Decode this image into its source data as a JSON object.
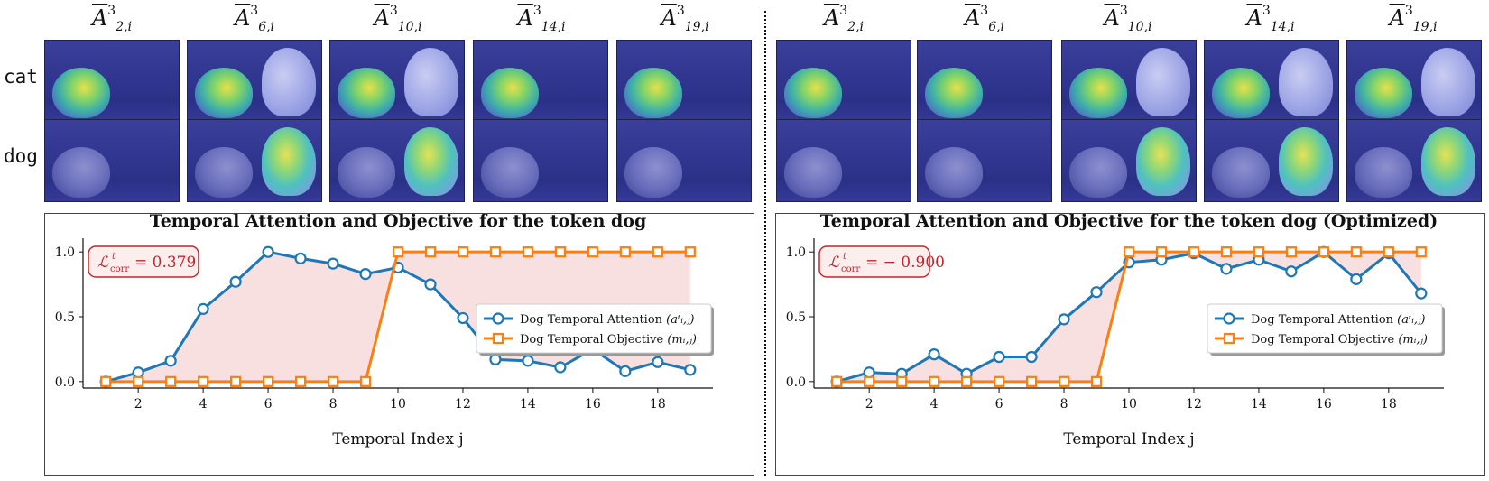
{
  "columns_left": [
    {
      "base": "A",
      "sup": "3",
      "sub": "2,i"
    },
    {
      "base": "A",
      "sup": "3",
      "sub": "6,i"
    },
    {
      "base": "A",
      "sup": "3",
      "sub": "10,i"
    },
    {
      "base": "A",
      "sup": "3",
      "sub": "14,i"
    },
    {
      "base": "A",
      "sup": "3",
      "sub": "19,i"
    }
  ],
  "columns_right": [
    {
      "base": "A",
      "sup": "3",
      "sub": "2,i"
    },
    {
      "base": "A",
      "sup": "3",
      "sub": "6,i"
    },
    {
      "base": "A",
      "sup": "3",
      "sub": "10,i"
    },
    {
      "base": "A",
      "sup": "3",
      "sub": "14,i"
    },
    {
      "base": "A",
      "sup": "3",
      "sub": "19,i"
    }
  ],
  "rows": {
    "cat": "cat",
    "dog": "dog"
  },
  "colors": {
    "attention": "#1f77b4",
    "objective": "#ff7f0e",
    "fill": "#f8dada",
    "loss_box": "#c0272d"
  },
  "chart_data": [
    {
      "type": "line",
      "title": "Temporal Attention and Objective for the token dog",
      "xlabel": "Temporal Index j",
      "ylabel": "",
      "xlim": [
        0.3,
        19.7
      ],
      "ylim": [
        -0.05,
        1.05
      ],
      "xticks": [
        2,
        4,
        6,
        8,
        10,
        12,
        14,
        16,
        18
      ],
      "yticks": [
        "0.0",
        "0.5",
        "1.0"
      ],
      "loss_text": "= 0.379",
      "legend": "center-right",
      "x": [
        1,
        2,
        3,
        4,
        5,
        6,
        7,
        8,
        9,
        10,
        11,
        12,
        13,
        14,
        15,
        16,
        17,
        18,
        19
      ],
      "series": [
        {
          "name": "Dog Temporal Attention",
          "values": [
            0.0,
            0.07,
            0.16,
            0.56,
            0.77,
            1.0,
            0.95,
            0.91,
            0.83,
            0.88,
            0.75,
            0.49,
            0.17,
            0.16,
            0.11,
            0.25,
            0.08,
            0.15,
            0.09
          ]
        },
        {
          "name": "Dog Temporal Objective",
          "values": [
            0,
            0,
            0,
            0,
            0,
            0,
            0,
            0,
            0,
            1,
            1,
            1,
            1,
            1,
            1,
            1,
            1,
            1,
            1
          ]
        }
      ]
    },
    {
      "type": "line",
      "title": "Temporal Attention and Objective for the token dog (Optimized)",
      "xlabel": "Temporal Index j",
      "ylabel": "",
      "xlim": [
        0.3,
        19.7
      ],
      "ylim": [
        -0.05,
        1.05
      ],
      "xticks": [
        2,
        4,
        6,
        8,
        10,
        12,
        14,
        16,
        18
      ],
      "yticks": [
        "0.0",
        "0.5",
        "1.0"
      ],
      "loss_text": "= − 0.900",
      "legend": "center-right",
      "x": [
        1,
        2,
        3,
        4,
        5,
        6,
        7,
        8,
        9,
        10,
        11,
        12,
        13,
        14,
        15,
        16,
        17,
        18,
        19
      ],
      "series": [
        {
          "name": "Dog Temporal Attention",
          "values": [
            0.0,
            0.07,
            0.06,
            0.21,
            0.06,
            0.19,
            0.19,
            0.48,
            0.69,
            0.92,
            0.94,
            0.99,
            0.87,
            0.94,
            0.85,
            1.0,
            0.79,
            0.99,
            0.68
          ]
        },
        {
          "name": "Dog Temporal Objective",
          "values": [
            0,
            0,
            0,
            0,
            0,
            0,
            0,
            0,
            0,
            1,
            1,
            1,
            1,
            1,
            1,
            1,
            1,
            1,
            1
          ]
        }
      ]
    }
  ]
}
